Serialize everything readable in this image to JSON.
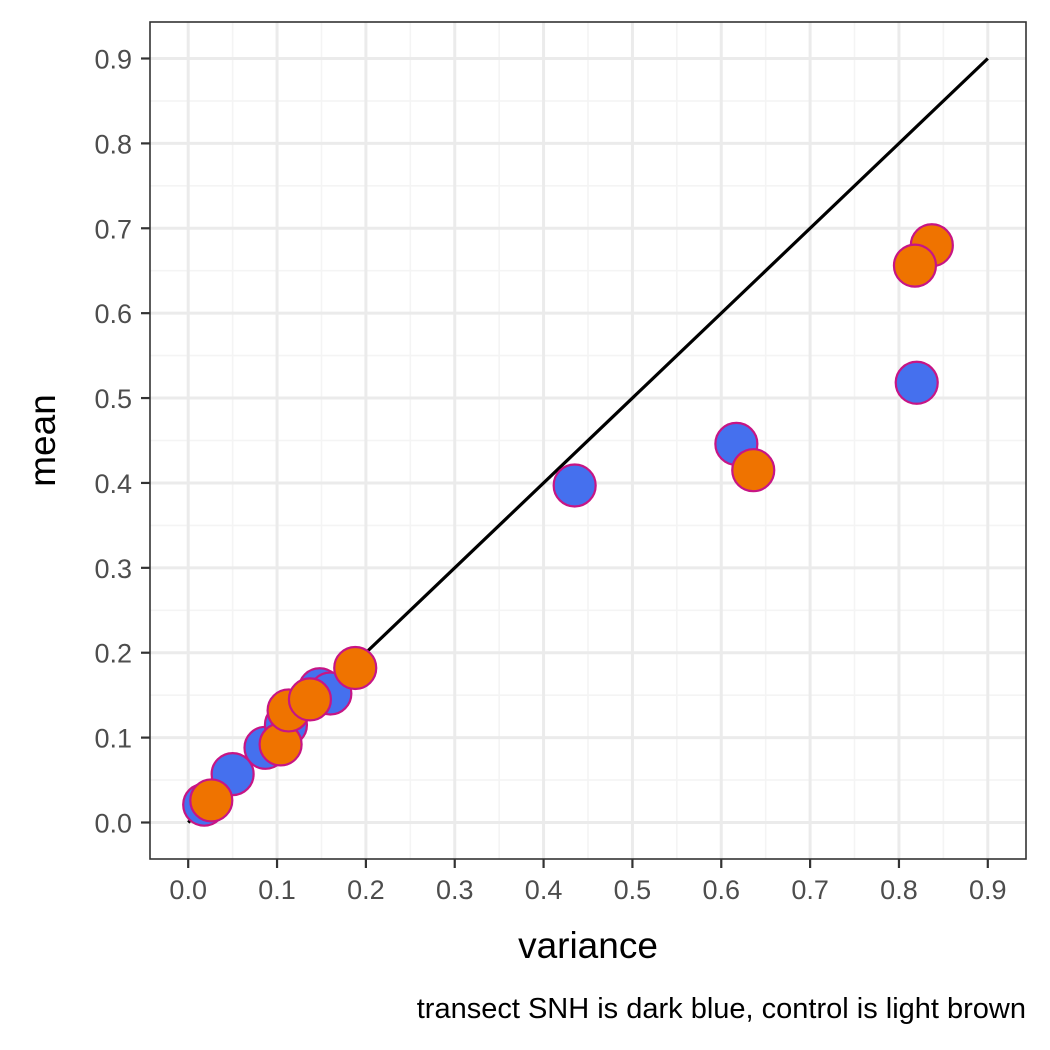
{
  "chart_data": {
    "type": "scatter",
    "title": "",
    "xlabel": "variance",
    "ylabel": "mean",
    "caption": "transect SNH is dark blue, control is light brown",
    "xlim": [
      -0.043,
      0.943
    ],
    "ylim": [
      -0.043,
      0.943
    ],
    "x_ticks": [
      0.0,
      0.1,
      0.2,
      0.3,
      0.4,
      0.5,
      0.6,
      0.7,
      0.8,
      0.9
    ],
    "y_ticks": [
      0.0,
      0.1,
      0.2,
      0.3,
      0.4,
      0.5,
      0.6,
      0.7,
      0.8,
      0.9
    ],
    "x_tick_labels": [
      "0.0",
      "0.1",
      "0.2",
      "0.3",
      "0.4",
      "0.5",
      "0.6",
      "0.7",
      "0.8",
      "0.9"
    ],
    "y_tick_labels": [
      "0.0",
      "0.1",
      "0.2",
      "0.3",
      "0.4",
      "0.5",
      "0.6",
      "0.7",
      "0.8",
      "0.9"
    ],
    "grid": true,
    "colors": {
      "snh": "#4570ee",
      "control": "#ef7300",
      "marker_outline": "#c71585",
      "reference_line": "#000000",
      "grid_major": "#ebebeb",
      "grid_minor": "#f4f4f4",
      "panel_border": "#333333"
    },
    "reference_line": {
      "from": [
        0.0,
        0.0
      ],
      "to": [
        0.9,
        0.9
      ]
    },
    "series": [
      {
        "group": "SNH",
        "points": [
          {
            "x": 0.018,
            "y": 0.021
          },
          {
            "x": 0.05,
            "y": 0.057
          },
          {
            "x": 0.087,
            "y": 0.088
          },
          {
            "x": 0.11,
            "y": 0.115
          },
          {
            "x": 0.148,
            "y": 0.157
          },
          {
            "x": 0.16,
            "y": 0.152
          },
          {
            "x": 0.435,
            "y": 0.397
          },
          {
            "x": 0.617,
            "y": 0.446
          },
          {
            "x": 0.82,
            "y": 0.518
          }
        ]
      },
      {
        "group": "control",
        "points": [
          {
            "x": 0.026,
            "y": 0.026
          },
          {
            "x": 0.104,
            "y": 0.092
          },
          {
            "x": 0.113,
            "y": 0.132
          },
          {
            "x": 0.137,
            "y": 0.145
          },
          {
            "x": 0.188,
            "y": 0.182
          },
          {
            "x": 0.636,
            "y": 0.415
          },
          {
            "x": 0.837,
            "y": 0.68
          },
          {
            "x": 0.818,
            "y": 0.656
          }
        ]
      }
    ]
  }
}
